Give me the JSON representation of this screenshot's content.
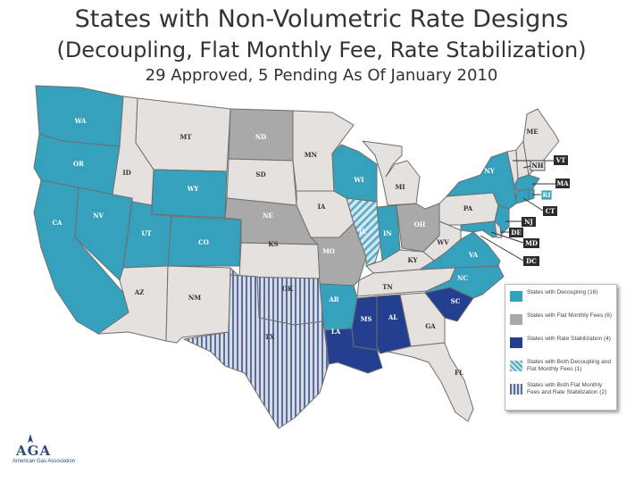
{
  "title": "States with Non-Volumetric Rate Designs",
  "subtitle": "(Decoupling, Flat Monthly Fee, Rate Stabilization)",
  "status_line": "29 Approved, 5 Pending As Of January 2010",
  "colors": {
    "decoupling": "#35a1bd",
    "flat_fee": "#a9a9a9",
    "rate_stabilization": "#243f8f",
    "none": "#e4e1de",
    "hatch_light": "#cfe6ef",
    "hatch_dark": "#5b7faa"
  },
  "states": {
    "WA": "WA",
    "OR": "OR",
    "CA": "CA",
    "NV": "NV",
    "ID": "ID",
    "MT": "MT",
    "WY": "WY",
    "UT": "UT",
    "AZ": "AZ",
    "CO": "CO",
    "NM": "NM",
    "ND": "ND",
    "SD": "SD",
    "NE": "NE",
    "KS": "KS",
    "OK": "OK",
    "TX": "TX",
    "MN": "MN",
    "IA": "IA",
    "MO": "MO",
    "AR": "AR",
    "LA": "LA",
    "WI": "WI",
    "IL": "IL",
    "MI": "MI",
    "IN": "IN",
    "OH": "OH",
    "KY": "KY",
    "TN": "TN",
    "MS": "MS",
    "AL": "AL",
    "GA": "GA",
    "FL": "FL",
    "SC": "SC",
    "NC": "NC",
    "VA": "VA",
    "WV": "WV",
    "PA": "PA",
    "NY": "NY",
    "ME": "ME",
    "VT": "VT",
    "NH": "NH",
    "MA": "MA",
    "RI": "RI",
    "CT": "CT",
    "NJ": "NJ",
    "DE": "DE",
    "MD": "MD",
    "DC": "DC"
  },
  "legend": {
    "decoupling": "States with Decoupling (16)",
    "flat_fee": "States with Flat Monthly Fees (6)",
    "rate_stabilization": "States with Rate Stabilization (4)",
    "both_decoupling_flat": "States with Both Decoupling and Flat Monthly Fees (1)",
    "both_flat_stabilization": "States with Both Flat Monthly Fees and Rate Stabilization (2)"
  },
  "logo": {
    "mark": "AGA",
    "caption": "American Gas Association"
  }
}
